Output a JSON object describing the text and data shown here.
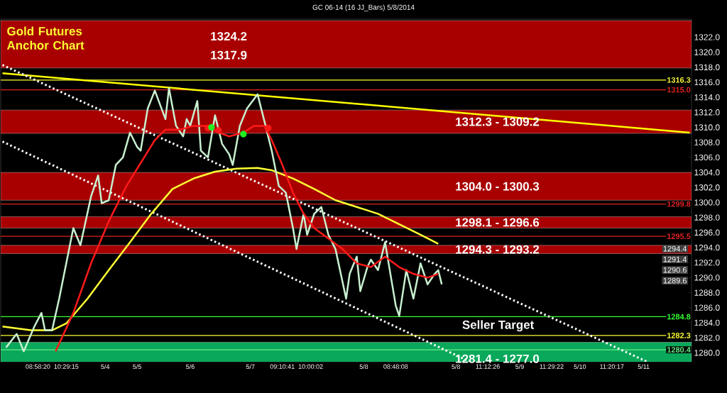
{
  "chart_data": {
    "type": "line",
    "title": "GC 06-14 (16 JJ_Bars)  5/8/2014",
    "subtitle": "Gold Futures Anchor Chart",
    "categories": [
      null,
      null,
      null,
      null,
      null,
      null,
      null,
      null,
      null,
      null,
      "08:58:20",
      null,
      null,
      null,
      null,
      null,
      null,
      null,
      "10:29:15",
      null,
      null,
      null,
      null,
      null,
      null,
      null,
      null,
      null,
      null,
      "5/4",
      null,
      null,
      null,
      null,
      null,
      null,
      null,
      null,
      "5/5",
      null,
      null,
      null,
      null,
      null,
      null,
      null,
      null,
      null,
      null,
      null,
      null,
      null,
      null,
      "5/6",
      null,
      null,
      null,
      null,
      null,
      null,
      null,
      null,
      null,
      null,
      null,
      null,
      null,
      null,
      null,
      null,
      "5/7",
      null,
      null,
      null,
      null,
      null,
      null,
      null,
      null,
      "09:10:41",
      null,
      null,
      null,
      null,
      null,
      null,
      null,
      "10:00:02",
      null,
      null,
      null,
      null,
      null,
      null,
      null,
      null,
      null,
      null,
      null,
      null,
      null,
      null,
      "5/8",
      null,
      null,
      null,
      null,
      null,
      null,
      null,
      null,
      "08:48:08",
      null,
      null,
      null,
      null,
      null,
      null,
      null,
      null,
      null,
      null,
      null,
      null,
      null,
      null,
      null,
      null,
      "5/8",
      null,
      null,
      null,
      null,
      null,
      null,
      null,
      null,
      "11:12:26",
      null,
      null,
      null,
      null,
      null,
      null,
      null,
      null,
      "5/9",
      null,
      null,
      null,
      null,
      null,
      null,
      null,
      null,
      "11:29:22",
      null,
      null,
      null,
      null,
      null,
      null,
      null,
      "5/10",
      null,
      null,
      null,
      null,
      null,
      null,
      null,
      null,
      "11:20:17",
      null,
      null,
      null,
      null,
      null,
      null,
      null,
      null,
      "5/11",
      null,
      null,
      null,
      null,
      null,
      null,
      null,
      null,
      null,
      null,
      null,
      null,
      null
    ],
    "ylim": [
      1278.8,
      1324.4
    ],
    "yticks": [
      {
        "value": 1280,
        "label": "1280.0"
      },
      {
        "value": 1282,
        "label": "1282.0"
      },
      {
        "value": 1284,
        "label": "1284.0"
      },
      {
        "value": 1286,
        "label": "1286.0"
      },
      {
        "value": 1288,
        "label": "1288.0"
      },
      {
        "value": 1290,
        "label": "1290.0"
      },
      {
        "value": 1292,
        "label": "1292.0"
      },
      {
        "value": 1294,
        "label": "1294.0"
      },
      {
        "value": 1296,
        "label": "1296.0"
      },
      {
        "value": 1298,
        "label": "1298.0"
      },
      {
        "value": 1300,
        "label": "1300.0"
      },
      {
        "value": 1302,
        "label": "1302.0"
      },
      {
        "value": 1304,
        "label": "1304.0"
      },
      {
        "value": 1306,
        "label": "1306.0"
      },
      {
        "value": 1308,
        "label": "1308.0"
      },
      {
        "value": 1310,
        "label": "1310.0"
      },
      {
        "value": 1312,
        "label": "1312.0"
      },
      {
        "value": 1314,
        "label": "1314.0"
      },
      {
        "value": 1316,
        "label": "1316.0"
      },
      {
        "value": 1318,
        "label": "1318.0"
      },
      {
        "value": 1320,
        "label": "1320.0"
      },
      {
        "value": 1322,
        "label": "1322.0"
      }
    ],
    "bands": [
      {
        "axis": "y",
        "from": 1317.9,
        "to": 1324.2,
        "color": "#a80000"
      },
      {
        "axis": "y",
        "from": 1309.2,
        "to": 1312.3,
        "label": "1312.3 - 1309.2",
        "color": "#a80000"
      },
      {
        "axis": "y",
        "from": 1300.3,
        "to": 1304.0,
        "label": "1304.0 - 1300.3",
        "color": "#a80000"
      },
      {
        "axis": "y",
        "from": 1296.6,
        "to": 1298.1,
        "label": "1298.1 - 1296.6",
        "color": "#a80000"
      },
      {
        "axis": "y",
        "from": 1293.2,
        "to": 1294.3,
        "label": "1294.3 - 1293.2",
        "color": "#a80000"
      },
      {
        "axis": "y",
        "from": 1277.0,
        "to": 1281.4,
        "label": "1281.4 - 1277.0",
        "color": "#0aa85a"
      }
    ],
    "ref_lines": [
      {
        "axis": "y",
        "value": 1316.3,
        "label": "1316.3",
        "color": "#ffff33"
      },
      {
        "axis": "y",
        "value": 1315.0,
        "label": "1315.0",
        "color": "#e02020"
      },
      {
        "axis": "y",
        "value": 1299.8,
        "label": "1299.8",
        "color": "#e02020"
      },
      {
        "axis": "y",
        "value": 1295.5,
        "label": "1295.5",
        "color": "#e02020"
      },
      {
        "axis": "y",
        "value": 1284.8,
        "label": "1284.8",
        "color": "#33ff33"
      },
      {
        "axis": "y",
        "value": 1282.3,
        "label": "1282.3",
        "color": "#ffff33"
      },
      {
        "axis": "y",
        "value": 1280.4,
        "label": "1280.4",
        "color": "#66ee88"
      }
    ],
    "annotations": [
      "1324.2",
      "1317.9",
      "Seller Target",
      "1294.4",
      "1291.4",
      "1290.6",
      "1289.6"
    ],
    "series": [
      {
        "color": "#ffff00",
        "values": [
          1317.2,
          null,
          null,
          null,
          null,
          null,
          null,
          null,
          null,
          null,
          null,
          null,
          null,
          null,
          null,
          null,
          null,
          null,
          null,
          null,
          null,
          null,
          null,
          null,
          null,
          null,
          null,
          null,
          null,
          null,
          null,
          null,
          null,
          null,
          null,
          null,
          null,
          null,
          null,
          null,
          null,
          null,
          null,
          null,
          null,
          null,
          null,
          null,
          null,
          null,
          null,
          null,
          null,
          null,
          null,
          null,
          null,
          null,
          null,
          null,
          null,
          null,
          null,
          null,
          null,
          null,
          null,
          null,
          null,
          null,
          null,
          null,
          null,
          null,
          null,
          null,
          null,
          null,
          null,
          null,
          null,
          null,
          null,
          null,
          null,
          null,
          null,
          null,
          null,
          null,
          null,
          null,
          null,
          null,
          null,
          null,
          null,
          null,
          null,
          null,
          null,
          null,
          null,
          null,
          null,
          null,
          null,
          null,
          null,
          null,
          null,
          null,
          null,
          null,
          null,
          null,
          null,
          null,
          null,
          null,
          null,
          null,
          null,
          null,
          null,
          null,
          null,
          null,
          null,
          null,
          null,
          null,
          null,
          null,
          null,
          null,
          null,
          null,
          null,
          null,
          null,
          null,
          null,
          null,
          null,
          null,
          null,
          null,
          null,
          null,
          null,
          null,
          null,
          null,
          null,
          null,
          null,
          null,
          null,
          null,
          null,
          null,
          null,
          null,
          null,
          null,
          null,
          null,
          null,
          null,
          null,
          null,
          null,
          null,
          null,
          null,
          null,
          null,
          null,
          null,
          null,
          null,
          null,
          null,
          null,
          null,
          null,
          null,
          null,
          null,
          null,
          null,
          null,
          null,
          1309.3
        ]
      },
      {
        "color": "#ffffff",
        "line_style": "dotted",
        "values": [
          1318.3,
          null,
          null,
          null,
          null,
          null,
          null,
          null,
          null,
          null,
          null,
          null,
          null,
          null,
          null,
          null,
          null,
          null,
          null,
          null,
          null,
          null,
          null,
          null,
          null,
          null,
          null,
          null,
          null,
          null,
          null,
          null,
          null,
          null,
          null,
          null,
          null,
          null,
          null,
          null,
          null,
          null,
          null,
          null,
          null,
          null,
          null,
          null,
          null,
          null,
          null,
          null,
          null,
          null,
          null,
          null,
          null,
          null,
          null,
          null,
          null,
          null,
          null,
          null,
          null,
          null,
          null,
          null,
          null,
          null,
          null,
          null,
          null,
          null,
          null,
          null,
          null,
          null,
          null,
          null,
          null,
          null,
          null,
          null,
          null,
          null,
          null,
          null,
          null,
          null,
          null,
          null,
          null,
          null,
          null,
          null,
          null,
          null,
          null,
          null,
          null,
          null,
          null,
          null,
          null,
          null,
          null,
          null,
          null,
          null,
          null,
          null,
          null,
          null,
          null,
          null,
          null,
          null,
          null,
          null,
          null,
          null,
          null,
          null,
          null,
          null,
          null,
          null,
          null,
          null,
          null,
          null,
          null,
          null,
          null,
          null,
          null,
          null,
          null,
          null,
          null,
          null,
          null,
          null,
          null,
          null,
          null,
          null,
          null,
          null,
          null,
          null,
          null,
          null,
          null,
          null,
          null,
          null,
          null,
          null,
          null,
          null,
          null,
          null,
          null,
          null,
          null,
          null,
          null,
          null,
          null,
          null,
          null,
          null,
          null,
          null,
          null,
          null,
          null,
          null,
          null,
          null,
          1278.8,
          null,
          null,
          null,
          null,
          null,
          null,
          null,
          null,
          null,
          null,
          null,
          null
        ]
      },
      {
        "color": "#ffffff",
        "line_style": "dotted",
        "values": [
          1308.1,
          null,
          null,
          null,
          null,
          null,
          null,
          null,
          null,
          null,
          null,
          null,
          null,
          null,
          null,
          null,
          null,
          null,
          null,
          null,
          null,
          null,
          null,
          null,
          null,
          null,
          null,
          null,
          null,
          null,
          null,
          null,
          null,
          null,
          null,
          null,
          null,
          null,
          null,
          null,
          null,
          null,
          null,
          null,
          null,
          null,
          null,
          null,
          null,
          null,
          null,
          null,
          null,
          null,
          null,
          null,
          null,
          null,
          null,
          null,
          null,
          null,
          null,
          null,
          null,
          null,
          null,
          null,
          null,
          null,
          null,
          null,
          null,
          null,
          null,
          null,
          null,
          null,
          null,
          null,
          null,
          null,
          null,
          null,
          null,
          null,
          null,
          null,
          null,
          null,
          null,
          null,
          null,
          null,
          null,
          null,
          null,
          null,
          null,
          null,
          null,
          null,
          null,
          null,
          null,
          null,
          null,
          null,
          null,
          null,
          null,
          null,
          null,
          null,
          null,
          null,
          null,
          null,
          null,
          null,
          null,
          null,
          null,
          null,
          null,
          null,
          null,
          null,
          null,
          null,
          null,
          null,
          1278.8,
          null,
          null,
          null,
          null,
          null,
          null,
          null,
          null,
          null,
          null,
          null,
          null,
          null,
          null,
          null,
          null,
          null,
          null,
          null,
          null,
          null,
          null,
          null,
          null,
          null,
          null,
          null,
          null,
          null,
          null,
          null,
          null,
          null,
          null,
          null,
          null,
          null,
          null,
          null,
          null,
          null,
          null,
          null,
          null,
          null,
          null,
          null,
          null,
          null,
          null,
          null,
          null,
          null,
          null,
          null,
          null,
          null,
          null,
          null,
          null,
          null,
          null
        ]
      },
      {
        "color": "#ffff33",
        "values": [
          1283.5,
          null,
          null,
          null,
          null,
          null,
          null,
          null,
          1283.0,
          null,
          null,
          null,
          null,
          null,
          1283.0,
          null,
          null,
          null,
          1283.9,
          null,
          null,
          null,
          null,
          null,
          1287.2,
          null,
          null,
          null,
          null,
          null,
          1291.0,
          null,
          null,
          null,
          null,
          null,
          1294.7,
          null,
          null,
          null,
          null,
          null,
          1298.5,
          null,
          null,
          null,
          null,
          null,
          1301.8,
          null,
          null,
          null,
          null,
          null,
          1303.2,
          null,
          null,
          null,
          null,
          null,
          1304.1,
          null,
          null,
          null,
          null,
          null,
          1304.5,
          null,
          null,
          null,
          null,
          null,
          1304.6,
          null,
          null,
          null,
          1304.3,
          null,
          null,
          null,
          null,
          null,
          1303.2,
          null,
          null,
          null,
          null,
          null,
          1301.8,
          null,
          null,
          null,
          null,
          null,
          1300.3,
          null,
          null,
          null,
          null,
          null,
          1299.4,
          null,
          null,
          null,
          null,
          null,
          1298.5,
          null,
          null,
          null,
          null,
          null,
          1297.1,
          null,
          null,
          null,
          null,
          null,
          1295.7,
          null,
          null,
          null,
          null,
          1294.5,
          null,
          null,
          null,
          null,
          null,
          null,
          null,
          null,
          null,
          null,
          null,
          null,
          null,
          null,
          null,
          null,
          null,
          null,
          null,
          null,
          null,
          null,
          null,
          null,
          null,
          null,
          null,
          null,
          null,
          null,
          null,
          null,
          null,
          null,
          null,
          null,
          null,
          null,
          null,
          null,
          null,
          null,
          null,
          null,
          null,
          null,
          null,
          null,
          null,
          null,
          null,
          null,
          null,
          null,
          null,
          null,
          null,
          null,
          null,
          null,
          null,
          null,
          null,
          null,
          null,
          null,
          null,
          null,
          null,
          null,
          null
        ]
      },
      {
        "color": "#c8f0d0",
        "values": [
          null,
          1280.7,
          null,
          null,
          1282.5,
          null,
          1280.2,
          null,
          null,
          1283.5,
          null,
          1285.3,
          1283.0,
          null,
          1283.0,
          null,
          1287.2,
          null,
          null,
          null,
          1296.6,
          null,
          1294.3,
          null,
          null,
          1300.8,
          null,
          1303.6,
          1299.9,
          null,
          1300.3,
          null,
          1305.0,
          null,
          1306.0,
          null,
          1309.3,
          null,
          1307.4,
          1306.9,
          null,
          1312.5,
          null,
          1314.9,
          null,
          null,
          1311.1,
          1315.2,
          null,
          1310.2,
          null,
          1308.8,
          1311.1,
          1310.2,
          null,
          1313.5,
          1306.9,
          null,
          1306.0,
          null,
          1311.6,
          null,
          1307.8,
          null,
          1306.4,
          1305.0,
          null,
          1310.2,
          null,
          1312.5,
          null,
          null,
          1314.4,
          null,
          1310.7,
          null,
          1306.9,
          null,
          1302.2,
          null,
          1301.3,
          null,
          1296.6,
          1293.8,
          null,
          1298.5,
          1295.7,
          null,
          1298.5,
          null,
          1299.4,
          null,
          1295.7,
          null,
          1293.8,
          null,
          null,
          1287.2,
          1290.5,
          null,
          1292.8,
          1288.2,
          null,
          1291.4,
          1292.4,
          null,
          1291.0,
          null,
          1294.7,
          null,
          1289.1,
          1286.3,
          1284.9,
          null,
          1291.0,
          null,
          1287.2,
          null,
          1291.9,
          null,
          1289.1,
          null,
          1290.5,
          1291.0,
          1289.1,
          null,
          null,
          null,
          null,
          null,
          null,
          null,
          null,
          null,
          null,
          null,
          null,
          null,
          null,
          null,
          null,
          null,
          null,
          null,
          null,
          null,
          null,
          null,
          null,
          null,
          null,
          null,
          null,
          null,
          null,
          null,
          null,
          null,
          null,
          null,
          null,
          null,
          null,
          null,
          null,
          null,
          null,
          null,
          null,
          null,
          null,
          null,
          null,
          null,
          null,
          null,
          null,
          null,
          null,
          null,
          null,
          null,
          null,
          null,
          null,
          null,
          null,
          null,
          null,
          null,
          null,
          null,
          null,
          null,
          null
        ]
      },
      {
        "color": "#ff1a1a",
        "values": [
          null,
          null,
          null,
          null,
          null,
          null,
          null,
          null,
          null,
          null,
          null,
          null,
          null,
          null,
          null,
          1280.2,
          null,
          null,
          null,
          null,
          1285.3,
          null,
          null,
          null,
          null,
          1291.9,
          null,
          null,
          null,
          null,
          1297.5,
          null,
          null,
          null,
          null,
          1302.2,
          null,
          null,
          null,
          null,
          1306.0,
          null,
          null,
          1308.3,
          null,
          null,
          1309.7,
          null,
          null,
          null,
          1309.7,
          null,
          null,
          null,
          1310.2,
          null,
          null,
          null,
          1310.2,
          null,
          null,
          1309.3,
          null,
          null,
          1308.8,
          null,
          null,
          null,
          1309.3,
          null,
          null,
          1310.2,
          null,
          null,
          1310.2,
          null,
          1308.3,
          null,
          null,
          1305.0,
          null,
          null,
          1301.3,
          null,
          null,
          1298.5,
          null,
          null,
          1296.6,
          null,
          null,
          null,
          1295.2,
          null,
          null,
          null,
          1293.8,
          null,
          null,
          null,
          1291.9,
          null,
          null,
          null,
          1291.4,
          null,
          null,
          null,
          1292.8,
          null,
          null,
          null,
          1291.4,
          null,
          null,
          null,
          1290.5,
          null,
          null,
          null,
          1290.0,
          null,
          null,
          1290.5,
          null,
          null,
          null,
          null,
          null,
          null,
          null,
          null,
          null,
          null,
          null,
          null,
          null,
          null,
          null,
          null,
          null,
          null,
          null,
          null,
          null,
          null,
          null,
          null,
          null,
          null,
          null,
          null,
          null,
          null,
          null,
          null,
          null,
          null,
          null,
          null,
          null,
          null,
          null,
          null,
          null,
          null,
          null,
          null,
          null,
          null,
          null,
          null,
          null,
          null,
          null,
          null,
          null,
          null,
          null,
          null,
          null,
          null,
          null,
          null,
          null,
          null,
          null,
          null,
          null,
          null,
          null,
          null,
          null,
          null,
          null
        ]
      },
      {
        "type": "scatter",
        "color": "#ff1a1a",
        "marker": "circle",
        "values": [
          null,
          null,
          null,
          null,
          null,
          null,
          null,
          null,
          null,
          null,
          null,
          null,
          null,
          null,
          null,
          null,
          null,
          null,
          null,
          null,
          null,
          null,
          null,
          null,
          null,
          null,
          null,
          null,
          null,
          null,
          null,
          null,
          null,
          null,
          null,
          null,
          null,
          null,
          null,
          null,
          null,
          null,
          null,
          null,
          null,
          null,
          null,
          null,
          null,
          null,
          null,
          null,
          null,
          null,
          null,
          null,
          null,
          null,
          1309.9,
          null,
          null,
          1309.6,
          null,
          null,
          null,
          null,
          null,
          null,
          null,
          null,
          null,
          null,
          null,
          null,
          null,
          1309.9,
          null,
          null,
          null,
          null,
          null,
          null,
          null,
          null,
          null,
          null,
          null,
          null,
          null,
          null,
          null,
          null,
          null,
          null,
          null,
          null,
          null,
          null,
          null,
          null,
          null,
          null,
          null,
          null,
          null,
          null,
          null,
          null,
          null,
          null,
          null,
          null,
          null,
          null,
          null,
          null,
          null,
          null,
          null,
          null,
          null,
          null,
          null,
          null,
          null,
          null,
          null,
          null,
          null,
          null,
          null,
          null,
          null,
          null,
          null,
          null,
          null,
          null,
          null,
          null,
          null,
          null,
          null,
          null,
          null,
          null,
          null,
          null,
          null,
          null,
          null,
          null,
          null,
          null,
          null,
          null,
          null,
          null,
          null,
          null,
          null,
          null,
          null,
          null,
          null,
          null,
          null,
          null,
          null,
          null,
          null,
          null,
          null,
          null,
          null,
          null,
          null,
          null,
          null,
          null,
          null,
          null,
          null,
          null,
          null,
          null,
          null,
          null,
          null,
          null,
          null,
          null,
          null,
          null,
          null
        ]
      },
      {
        "type": "scatter",
        "color": "#22ee22",
        "marker": "circle",
        "values": [
          null,
          null,
          null,
          null,
          null,
          null,
          null,
          null,
          null,
          null,
          null,
          null,
          null,
          null,
          null,
          null,
          null,
          null,
          null,
          null,
          null,
          null,
          null,
          null,
          null,
          null,
          null,
          null,
          null,
          null,
          null,
          null,
          null,
          null,
          null,
          null,
          null,
          null,
          null,
          null,
          null,
          null,
          null,
          null,
          null,
          null,
          null,
          null,
          null,
          null,
          null,
          null,
          null,
          null,
          null,
          null,
          null,
          null,
          null,
          1310.0,
          null,
          null,
          null,
          null,
          null,
          null,
          null,
          null,
          1309.1,
          null,
          null,
          null,
          null,
          null,
          null,
          null,
          null,
          null,
          null,
          null,
          null,
          null,
          null,
          null,
          null,
          null,
          null,
          null,
          null,
          null,
          null,
          null,
          null,
          null,
          null,
          null,
          null,
          null,
          null,
          null,
          null,
          null,
          null,
          null,
          null,
          null,
          null,
          null,
          null,
          null,
          null,
          null,
          null,
          null,
          null,
          null,
          null,
          null,
          null,
          null,
          null,
          null,
          null,
          null,
          null,
          null,
          null,
          null,
          null,
          null,
          null,
          null,
          null,
          null,
          null,
          null,
          null,
          null,
          null,
          null,
          null,
          null,
          null,
          null,
          null,
          null,
          null,
          null,
          null,
          null,
          null,
          null,
          null,
          null,
          null,
          null,
          null,
          null,
          null,
          null,
          null,
          null,
          null,
          null,
          null,
          null,
          null,
          null,
          null,
          null,
          null,
          null,
          null,
          null,
          null,
          null,
          null,
          null,
          null,
          null,
          null,
          null,
          null,
          null,
          null,
          null,
          null,
          null,
          null,
          null,
          null,
          null,
          null,
          null,
          null
        ]
      }
    ]
  }
}
